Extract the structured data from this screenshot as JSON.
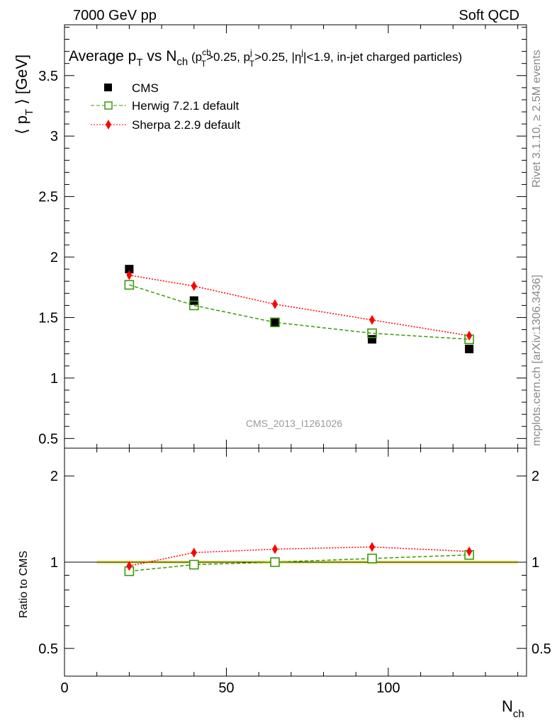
{
  "header": {
    "left": "7000 GeV pp",
    "right": "Soft QCD"
  },
  "side": {
    "top": "Rivet 3.1.10, ≥ 2.5M events",
    "bottom": "mcplots.cern.ch [arXiv:1306.3436]"
  },
  "watermark": "CMS_2013_I1261026",
  "title": {
    "p1": "Average p",
    "s1": "T",
    "p2": " vs N",
    "s2": "ch",
    "p3": " (p",
    "u3": "ch",
    "s3": "T",
    "p4": ">0.25, p",
    "u4": "j",
    "s4": "T",
    "p5": ">0.25, |η",
    "u5": "j",
    "p6": "|<1.9, in-jet charged particles)"
  },
  "ylabel": {
    "a": "⟨ p",
    "sub": "T",
    "b": " ⟩ [GeV]"
  },
  "ratio_label": "Ratio to CMS",
  "xlabel": {
    "a": "N",
    "sub": "ch"
  },
  "colors": {
    "cms": "#000000",
    "herwig": "#3a9a0a",
    "sherpa": "#ff0000",
    "band": "#f0f08a",
    "band_line": "#9acd32"
  },
  "chart_data": [
    {
      "type": "scatter",
      "panel": "main",
      "xlim": [
        0,
        142.7
      ],
      "ylim": [
        0.42,
        3.92
      ],
      "xticks": [
        0,
        50,
        100
      ],
      "xtick_labels": [
        "0",
        "50",
        "100"
      ],
      "yticks": [
        0.5,
        1,
        1.5,
        2,
        2.5,
        3,
        3.5
      ],
      "ytick_labels": [
        "0.5",
        "1",
        "1.5",
        "2",
        "2.5",
        "3",
        "3.5"
      ],
      "x": [
        20,
        40,
        65,
        95,
        125
      ],
      "series": [
        {
          "name": "CMS",
          "values": [
            1.9,
            1.64,
            1.46,
            1.32,
            1.24
          ]
        },
        {
          "name": "Herwig 7.2.1 default",
          "values": [
            1.77,
            1.6,
            1.46,
            1.37,
            1.32
          ]
        },
        {
          "name": "Sherpa 2.2.9 default",
          "values": [
            1.85,
            1.76,
            1.61,
            1.48,
            1.35
          ]
        }
      ],
      "legend": "top-left"
    },
    {
      "type": "line",
      "panel": "ratio",
      "yscale": "log",
      "ylim": [
        0.4,
        2.5
      ],
      "yticks": [
        0.5,
        1,
        2
      ],
      "ytick_labels": [
        "0.5",
        "1",
        "2"
      ],
      "x": [
        20,
        40,
        65,
        95,
        125
      ],
      "band": [
        10,
        140
      ],
      "series": [
        {
          "name": "Herwig 7.2.1 default",
          "values": [
            0.93,
            0.98,
            1.0,
            1.03,
            1.06
          ]
        },
        {
          "name": "Sherpa 2.2.9 default",
          "values": [
            0.97,
            1.08,
            1.11,
            1.13,
            1.09
          ]
        }
      ]
    }
  ]
}
